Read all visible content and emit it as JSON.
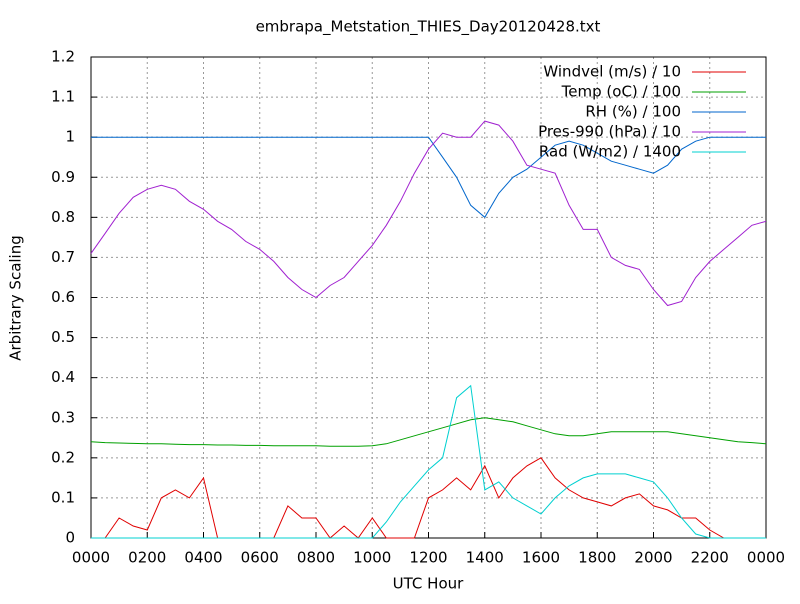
{
  "chart_data": {
    "type": "line",
    "title": "embrapa_Metstation_THIES_Day20120428.txt",
    "x_label": "UTC Hour",
    "y_label": "Arbitrary Scaling",
    "xlim": [
      0,
      24
    ],
    "ylim": [
      0,
      1.2
    ],
    "xticks": [
      {
        "value": 0,
        "label": "0000"
      },
      {
        "value": 2,
        "label": "0200"
      },
      {
        "value": 4,
        "label": "0400"
      },
      {
        "value": 6,
        "label": "0600"
      },
      {
        "value": 8,
        "label": "0800"
      },
      {
        "value": 10,
        "label": "1000"
      },
      {
        "value": 12,
        "label": "1200"
      },
      {
        "value": 14,
        "label": "1400"
      },
      {
        "value": 16,
        "label": "1600"
      },
      {
        "value": 18,
        "label": "1800"
      },
      {
        "value": 20,
        "label": "2000"
      },
      {
        "value": 22,
        "label": "2200"
      },
      {
        "value": 24,
        "label": "0000"
      }
    ],
    "yticks": [
      0,
      0.1,
      0.2,
      0.3,
      0.4,
      0.5,
      0.6,
      0.7,
      0.8,
      0.9,
      1,
      1.1,
      1.2
    ],
    "grid": true,
    "legend": "top-right",
    "x": [
      0,
      0.5,
      1,
      1.5,
      2,
      2.5,
      3,
      3.5,
      4,
      4.5,
      5,
      5.5,
      6,
      6.5,
      7,
      7.5,
      8,
      8.5,
      9,
      9.5,
      10,
      10.5,
      11,
      11.5,
      12,
      12.5,
      13,
      13.5,
      14,
      14.5,
      15,
      15.5,
      16,
      16.5,
      17,
      17.5,
      18,
      18.5,
      19,
      19.5,
      20,
      20.5,
      21,
      21.5,
      22,
      22.5,
      23,
      23.5,
      24
    ],
    "series": [
      {
        "name": "Windvel (m/s) / 10",
        "color": "#e00000",
        "values": [
          0,
          0,
          0.05,
          0.03,
          0.02,
          0.1,
          0.12,
          0.1,
          0.15,
          0,
          0,
          0,
          0,
          0,
          0.08,
          0.05,
          0.05,
          0,
          0.03,
          0,
          0.05,
          0,
          0,
          0,
          0.1,
          0.12,
          0.15,
          0.12,
          0.18,
          0.1,
          0.15,
          0.18,
          0.2,
          0.15,
          0.12,
          0.1,
          0.09,
          0.08,
          0.1,
          0.11,
          0.08,
          0.07,
          0.05,
          0.05,
          0.02,
          0,
          0,
          0,
          0
        ]
      },
      {
        "name": "Temp (oC) / 100",
        "color": "#00a000",
        "values": [
          0.24,
          0.238,
          0.237,
          0.236,
          0.235,
          0.235,
          0.234,
          0.233,
          0.233,
          0.232,
          0.232,
          0.231,
          0.231,
          0.23,
          0.23,
          0.23,
          0.23,
          0.229,
          0.229,
          0.229,
          0.23,
          0.235,
          0.245,
          0.255,
          0.265,
          0.275,
          0.285,
          0.295,
          0.3,
          0.295,
          0.29,
          0.28,
          0.27,
          0.26,
          0.255,
          0.255,
          0.26,
          0.265,
          0.265,
          0.265,
          0.265,
          0.265,
          0.26,
          0.255,
          0.25,
          0.245,
          0.24,
          0.238,
          0.235
        ]
      },
      {
        "name": "RH (%) / 100",
        "color": "#0066cc",
        "values": [
          1,
          1,
          1,
          1,
          1,
          1,
          1,
          1,
          1,
          1,
          1,
          1,
          1,
          1,
          1,
          1,
          1,
          1,
          1,
          1,
          1,
          1,
          1,
          1,
          1,
          0.95,
          0.9,
          0.83,
          0.8,
          0.86,
          0.9,
          0.92,
          0.95,
          0.98,
          0.99,
          0.98,
          0.96,
          0.94,
          0.93,
          0.92,
          0.91,
          0.93,
          0.97,
          0.99,
          1,
          1,
          1,
          1,
          1
        ]
      },
      {
        "name": "Pres-990 (hPa) / 10",
        "color": "#a020d0",
        "values": [
          0.71,
          0.76,
          0.81,
          0.85,
          0.87,
          0.88,
          0.87,
          0.84,
          0.82,
          0.79,
          0.77,
          0.74,
          0.72,
          0.69,
          0.65,
          0.62,
          0.6,
          0.63,
          0.65,
          0.69,
          0.73,
          0.78,
          0.84,
          0.91,
          0.97,
          1.01,
          1,
          1,
          1.04,
          1.03,
          0.99,
          0.93,
          0.92,
          0.91,
          0.83,
          0.77,
          0.77,
          0.7,
          0.68,
          0.67,
          0.62,
          0.58,
          0.59,
          0.65,
          0.69,
          0.72,
          0.75,
          0.78,
          0.79
        ]
      },
      {
        "name": "Rad (W/m2) / 1400",
        "color": "#00d0d0",
        "values": [
          0,
          0,
          0,
          0,
          0,
          0,
          0,
          0,
          0,
          0,
          0,
          0,
          0,
          0,
          0,
          0,
          0,
          0,
          0,
          0,
          0,
          0.04,
          0.09,
          0.13,
          0.17,
          0.2,
          0.35,
          0.38,
          0.12,
          0.14,
          0.1,
          0.08,
          0.06,
          0.1,
          0.13,
          0.15,
          0.16,
          0.16,
          0.16,
          0.15,
          0.14,
          0.1,
          0.05,
          0.01,
          0,
          0,
          0,
          0,
          0
        ]
      }
    ]
  }
}
